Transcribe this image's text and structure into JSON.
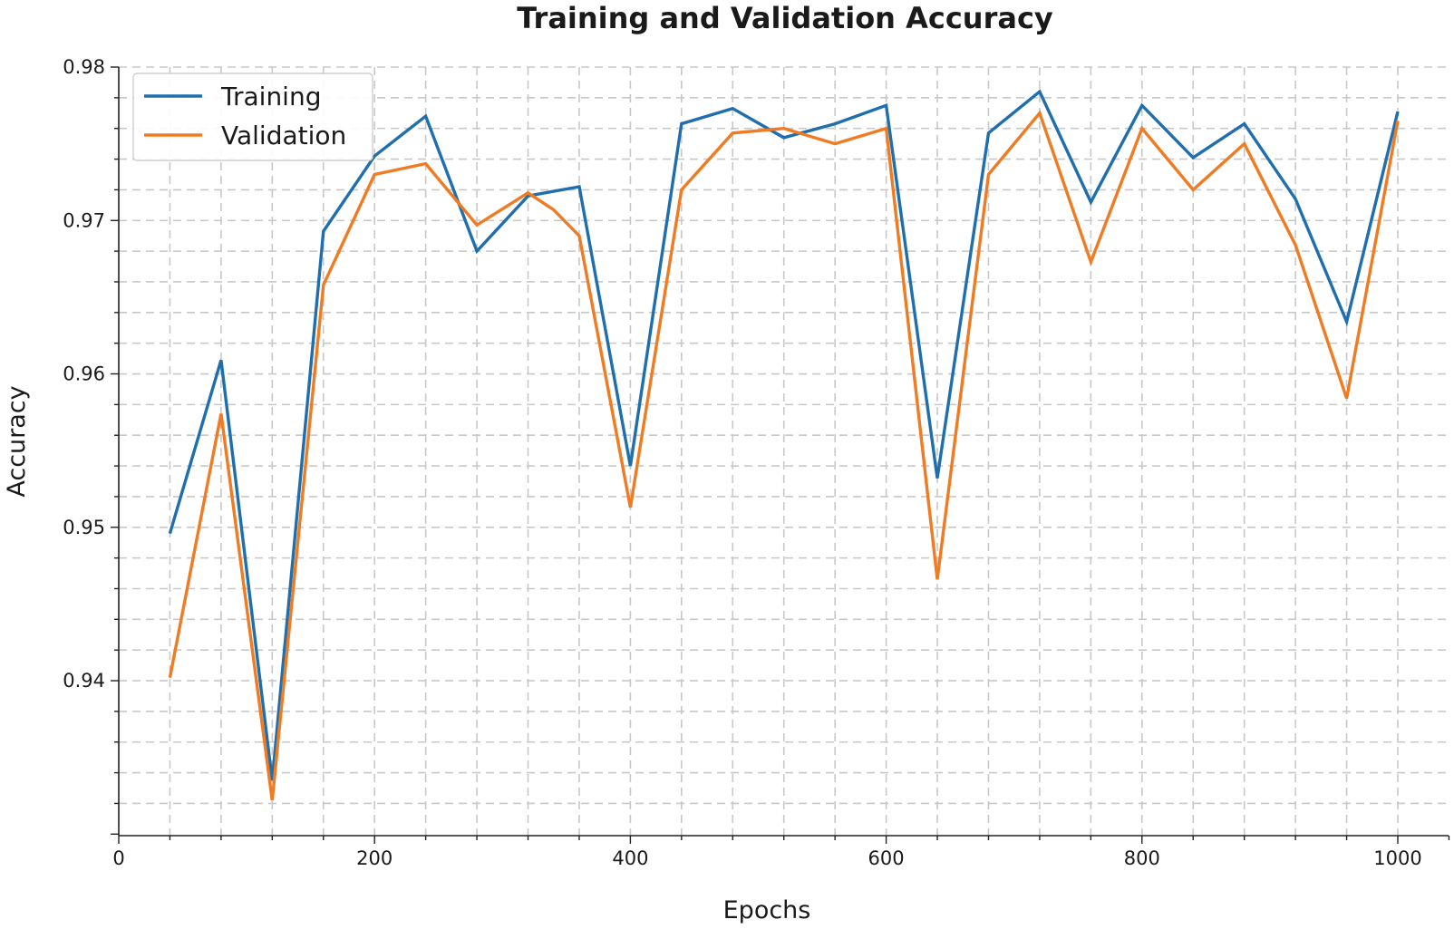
{
  "chart_data": {
    "type": "line",
    "title": "Training and Validation Accuracy",
    "xlabel": "Epochs",
    "ylabel": "Accuracy",
    "xlim": [
      0,
      1040
    ],
    "ylim": [
      0.93,
      0.98
    ],
    "x_ticks": [
      0,
      200,
      400,
      600,
      800,
      1000
    ],
    "x_tick_labels": [
      "0",
      "200",
      "400",
      "600",
      "800",
      "1000"
    ],
    "y_ticks": [
      0.94,
      0.95,
      0.96,
      0.97,
      0.98
    ],
    "y_tick_labels": [
      "0.94",
      "0.95",
      "0.96",
      "0.97",
      "0.98"
    ],
    "grid": true,
    "legend_position": "top-left",
    "x": [
      40,
      80,
      120,
      160,
      200,
      240,
      280,
      320,
      340,
      360,
      400,
      440,
      480,
      520,
      560,
      600,
      640,
      680,
      720,
      760,
      800,
      840,
      880,
      920,
      960,
      1000
    ],
    "series": [
      {
        "name": "Training",
        "color": "#1f6fae",
        "values": [
          0.9496,
          0.9609,
          0.9335,
          0.9693,
          0.9742,
          0.9768,
          0.968,
          0.9716,
          0.9719,
          0.9722,
          0.954,
          0.9763,
          0.9773,
          0.9754,
          0.9763,
          0.9775,
          0.9532,
          0.9757,
          0.9784,
          0.9712,
          0.9775,
          0.9741,
          0.9763,
          0.9714,
          0.9634,
          0.9771
        ]
      },
      {
        "name": "Validation",
        "color": "#f07b22",
        "values": [
          0.9402,
          0.9574,
          0.9322,
          0.9658,
          0.973,
          0.9737,
          0.9697,
          0.9718,
          0.9707,
          0.969,
          0.9513,
          0.972,
          0.9757,
          0.976,
          0.975,
          0.976,
          0.9466,
          0.973,
          0.977,
          0.9673,
          0.976,
          0.972,
          0.975,
          0.9684,
          0.9584,
          0.9765
        ]
      }
    ]
  }
}
